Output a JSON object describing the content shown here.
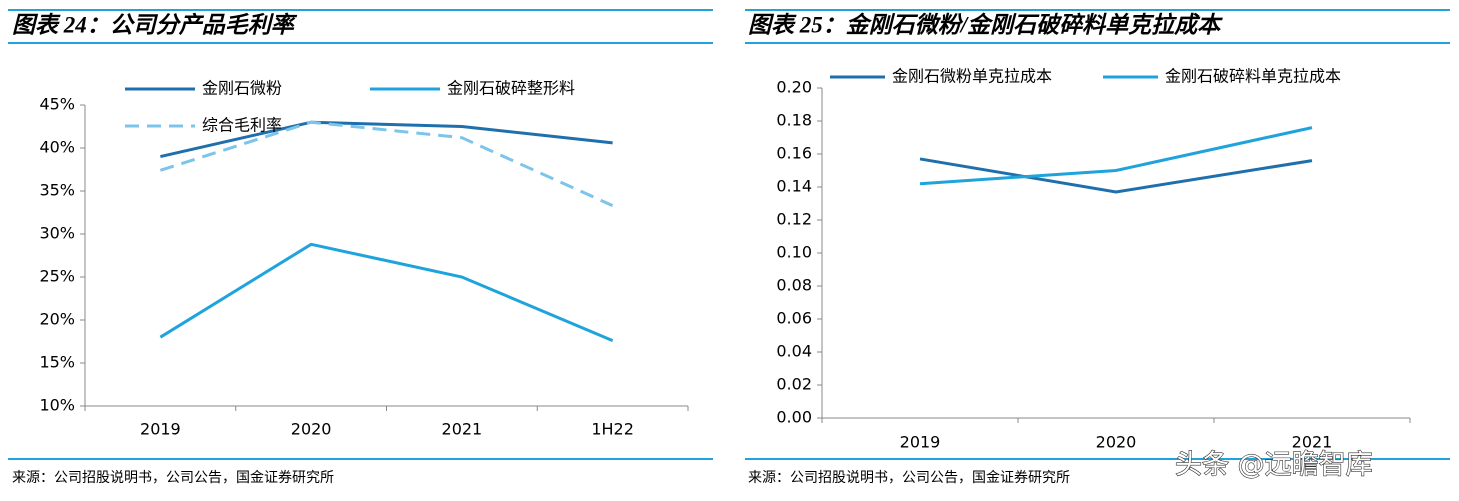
{
  "chart_data": [
    {
      "type": "line",
      "title": "图表 24：公司分产品毛利率",
      "categories": [
        "2019",
        "2020",
        "2021",
        "1H22"
      ],
      "series": [
        {
          "name": "金刚石微粉",
          "color": "#1f6fad",
          "dash": false,
          "values": [
            39,
            43,
            42.5,
            40.6
          ]
        },
        {
          "name": "金刚石破碎整形料",
          "color": "#1fa3dc",
          "dash": false,
          "values": [
            18,
            28.8,
            25,
            17.6
          ]
        },
        {
          "name": "综合毛利率",
          "color": "#7dc4ea",
          "dash": true,
          "values": [
            37.4,
            43,
            41.2,
            33.3
          ]
        }
      ],
      "ylim": [
        10,
        45
      ],
      "yticks": [
        {
          "value": 10,
          "label": "10%"
        },
        {
          "value": 15,
          "label": "15%"
        },
        {
          "value": 20,
          "label": "20%"
        },
        {
          "value": 25,
          "label": "25%"
        },
        {
          "value": 30,
          "label": "30%"
        },
        {
          "value": 35,
          "label": "35%"
        },
        {
          "value": 40,
          "label": "40%"
        },
        {
          "value": 45,
          "label": "45%"
        }
      ],
      "grid": false,
      "source": "来源：公司招股说明书，公司公告，国金证券研究所"
    },
    {
      "type": "line",
      "title": "图表 25：金刚石微粉/金刚石破碎料单克拉成本",
      "categories": [
        "2019",
        "2020",
        "2021"
      ],
      "series": [
        {
          "name": "金刚石微粉单克拉成本",
          "color": "#1f6fad",
          "dash": false,
          "values": [
            0.157,
            0.137,
            0.156
          ]
        },
        {
          "name": "金刚石破碎料单克拉成本",
          "color": "#1fa3dc",
          "dash": false,
          "values": [
            0.142,
            0.15,
            0.176
          ]
        }
      ],
      "ylim": [
        0,
        0.2
      ],
      "yticks": [
        {
          "value": 0,
          "label": "0.00"
        },
        {
          "value": 0.02,
          "label": "0.02"
        },
        {
          "value": 0.04,
          "label": "0.04"
        },
        {
          "value": 0.06,
          "label": "0.06"
        },
        {
          "value": 0.08,
          "label": "0.08"
        },
        {
          "value": 0.1,
          "label": "0.10"
        },
        {
          "value": 0.12,
          "label": "0.12"
        },
        {
          "value": 0.14,
          "label": "0.14"
        },
        {
          "value": 0.16,
          "label": "0.16"
        },
        {
          "value": 0.18,
          "label": "0.18"
        },
        {
          "value": 0.2,
          "label": "0.20"
        }
      ],
      "grid": false,
      "source": "来源：公司招股说明书，公司公告，国金证券研究所"
    }
  ],
  "watermark": "头条 @远瞻智库"
}
